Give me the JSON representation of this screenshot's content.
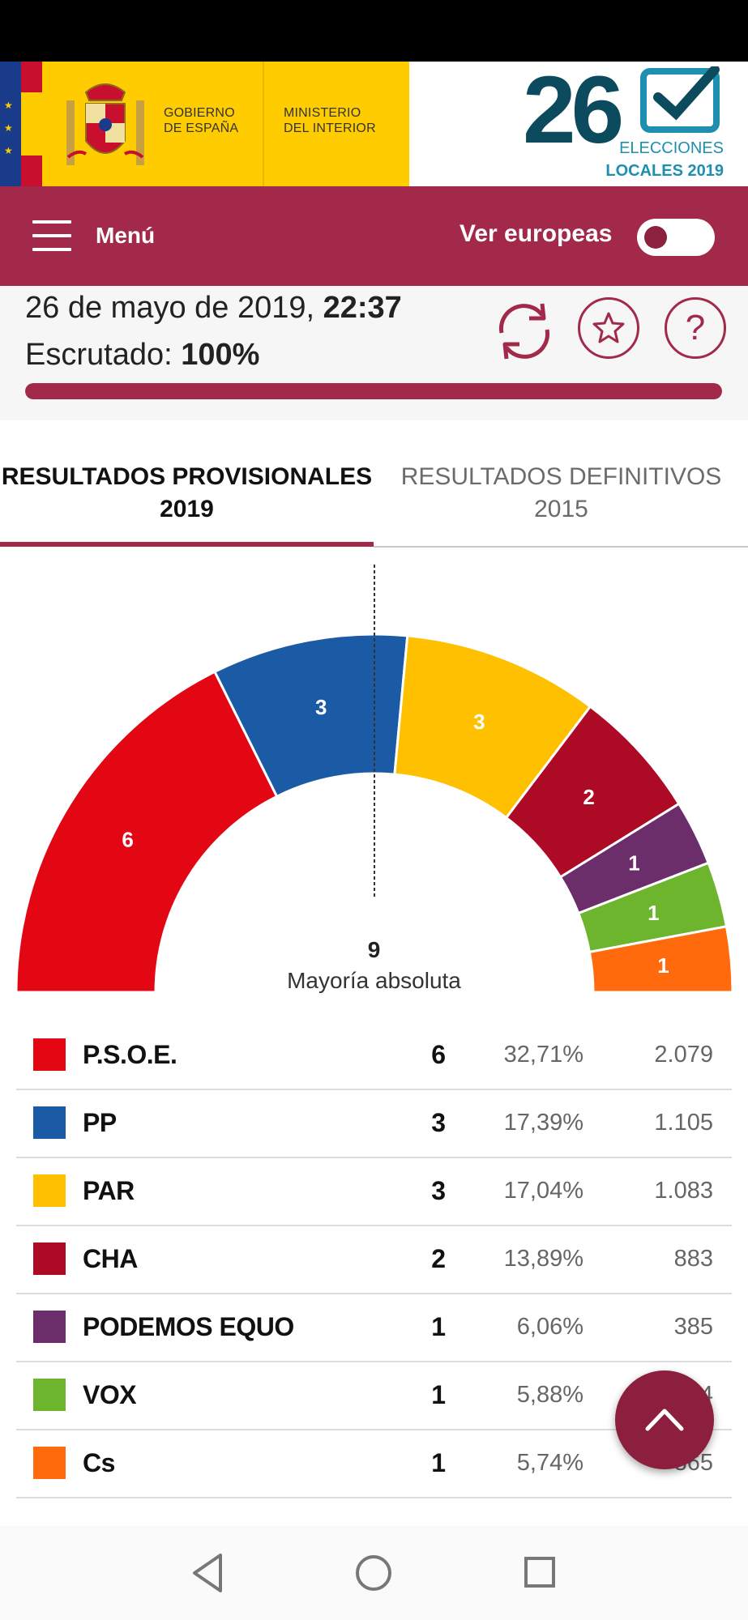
{
  "header": {
    "gov_line1": "GOBIERNO",
    "gov_line2": "DE ESPAÑA",
    "ministry_line1": "MINISTERIO",
    "ministry_line2": "DEL INTERIOR",
    "brand_number": "26",
    "brand_line1": "ELECCIONES",
    "brand_line2": "LOCALES 2019",
    "brand_color": "#0c4a5e"
  },
  "navbar": {
    "menu_label": "Menú",
    "toggle_label": "Ver europeas",
    "toggle_on": false,
    "color": "#a3294a"
  },
  "status": {
    "date_text": "26 de mayo de 2019, ",
    "time": "22:37",
    "scrutiny_label": "Escrutado: ",
    "scrutiny_value": "100%",
    "scrutiny_progress": 1.0
  },
  "tabs": [
    {
      "label": "RESULTADOS PROVISIONALES 2019",
      "active": true
    },
    {
      "label": "RESULTADOS DEFINITIVOS 2015",
      "active": false
    }
  ],
  "chart_data": {
    "type": "pie",
    "title": "",
    "total_seats": 17,
    "majority_value": "9",
    "majority_label": "Mayoría absoluta",
    "categories": [
      "P.S.O.E.",
      "PP",
      "PAR",
      "CHA",
      "PODEMOS EQUO",
      "VOX",
      "Cs"
    ],
    "values": [
      6,
      3,
      3,
      2,
      1,
      1,
      1
    ],
    "colors": [
      "#e30613",
      "#1b5ba5",
      "#ffc000",
      "#ad0a26",
      "#6b2e6b",
      "#6cb52d",
      "#ff6a0d"
    ]
  },
  "results": [
    {
      "party": "P.S.O.E.",
      "seats": "6",
      "percent": "32,71%",
      "votes": "2.079",
      "color": "#e30613"
    },
    {
      "party": "PP",
      "seats": "3",
      "percent": "17,39%",
      "votes": "1.105",
      "color": "#1b5ba5"
    },
    {
      "party": "PAR",
      "seats": "3",
      "percent": "17,04%",
      "votes": "1.083",
      "color": "#ffc000"
    },
    {
      "party": "CHA",
      "seats": "2",
      "percent": "13,89%",
      "votes": "883",
      "color": "#ad0a26"
    },
    {
      "party": "PODEMOS EQUO",
      "seats": "1",
      "percent": "6,06%",
      "votes": "385",
      "color": "#6b2e6b"
    },
    {
      "party": "VOX",
      "seats": "1",
      "percent": "5,88%",
      "votes": "374",
      "color": "#6cb52d"
    },
    {
      "party": "Cs",
      "seats": "1",
      "percent": "5,74%",
      "votes": "365",
      "color": "#ff6a0d"
    }
  ],
  "icons": {
    "refresh": "refresh-icon",
    "favorite": "star-icon",
    "help": "help-icon",
    "scroll_top": "chevron-up-icon"
  }
}
